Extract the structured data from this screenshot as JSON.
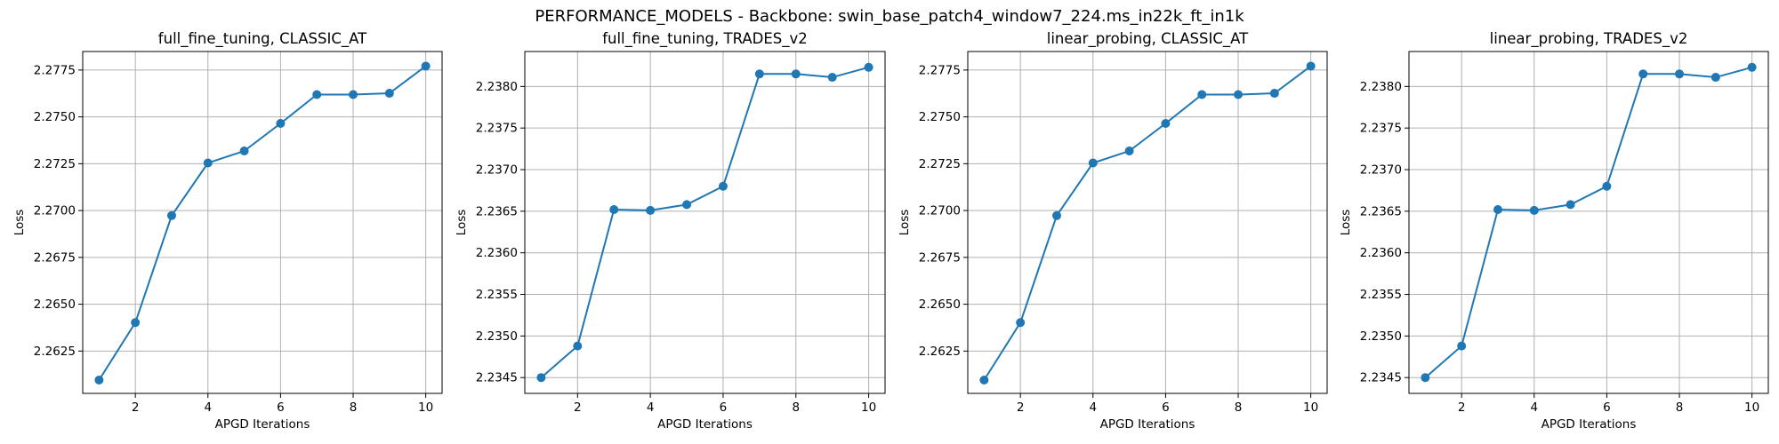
{
  "figure": {
    "suptitle": "PERFORMANCE_MODELS - Backbone: swin_base_patch4_window7_224.ms_in22k_ft_in1k",
    "line_color": "#1f77b4",
    "grid_color": "#b0b0b0"
  },
  "chart_data": [
    {
      "type": "line",
      "title": "full_fine_tuning, CLASSIC_AT",
      "xlabel": "APGD Iterations",
      "ylabel": "Loss",
      "x": [
        1,
        2,
        3,
        4,
        5,
        6,
        7,
        8,
        9,
        10
      ],
      "y": [
        2.26095,
        2.26402,
        2.26973,
        2.27254,
        2.27318,
        2.27465,
        2.27619,
        2.27619,
        2.27626,
        2.27771
      ],
      "xlim": [
        0.55,
        10.45
      ],
      "ylim": [
        2.26024,
        2.27849
      ],
      "xticks": [
        2,
        4,
        6,
        8,
        10
      ],
      "xtick_labels": [
        "2",
        "4",
        "6",
        "8",
        "10"
      ],
      "yticks": [
        2.2625,
        2.265,
        2.2675,
        2.27,
        2.2725,
        2.275,
        2.2775
      ],
      "ytick_labels": [
        "2.2625",
        "2.2650",
        "2.2675",
        "2.2700",
        "2.2725",
        "2.2750",
        "2.2775"
      ],
      "marker": "circle",
      "grid": true
    },
    {
      "type": "line",
      "title": "full_fine_tuning, TRADES_v2",
      "xlabel": "APGD Iterations",
      "ylabel": "Loss",
      "x": [
        1,
        2,
        3,
        4,
        5,
        6,
        7,
        8,
        9,
        10
      ],
      "y": [
        2.2345,
        2.23488,
        2.23652,
        2.23651,
        2.23658,
        2.2368,
        2.23815,
        2.23815,
        2.23811,
        2.23823
      ],
      "xlim": [
        0.55,
        10.45
      ],
      "ylim": [
        2.23431,
        2.23842
      ],
      "xticks": [
        2,
        4,
        6,
        8,
        10
      ],
      "xtick_labels": [
        "2",
        "4",
        "6",
        "8",
        "10"
      ],
      "yticks": [
        2.2345,
        2.235,
        2.2355,
        2.236,
        2.2365,
        2.237,
        2.2375,
        2.238
      ],
      "ytick_labels": [
        "2.2345",
        "2.2350",
        "2.2355",
        "2.2360",
        "2.2365",
        "2.2370",
        "2.2375",
        "2.2380"
      ],
      "marker": "circle",
      "grid": true
    },
    {
      "type": "line",
      "title": "linear_probing, CLASSIC_AT",
      "xlabel": "APGD Iterations",
      "ylabel": "Loss",
      "x": [
        1,
        2,
        3,
        4,
        5,
        6,
        7,
        8,
        9,
        10
      ],
      "y": [
        2.26095,
        2.26402,
        2.26973,
        2.27254,
        2.27318,
        2.27465,
        2.27619,
        2.27619,
        2.27626,
        2.27771
      ],
      "xlim": [
        0.55,
        10.45
      ],
      "ylim": [
        2.26024,
        2.27849
      ],
      "xticks": [
        2,
        4,
        6,
        8,
        10
      ],
      "xtick_labels": [
        "2",
        "4",
        "6",
        "8",
        "10"
      ],
      "yticks": [
        2.2625,
        2.265,
        2.2675,
        2.27,
        2.2725,
        2.275,
        2.2775
      ],
      "ytick_labels": [
        "2.2625",
        "2.2650",
        "2.2675",
        "2.2700",
        "2.2725",
        "2.2750",
        "2.2775"
      ],
      "marker": "circle",
      "grid": true
    },
    {
      "type": "line",
      "title": "linear_probing, TRADES_v2",
      "xlabel": "APGD Iterations",
      "ylabel": "Loss",
      "x": [
        1,
        2,
        3,
        4,
        5,
        6,
        7,
        8,
        9,
        10
      ],
      "y": [
        2.2345,
        2.23488,
        2.23652,
        2.23651,
        2.23658,
        2.2368,
        2.23815,
        2.23815,
        2.23811,
        2.23823
      ],
      "xlim": [
        0.55,
        10.45
      ],
      "ylim": [
        2.23431,
        2.23842
      ],
      "xticks": [
        2,
        4,
        6,
        8,
        10
      ],
      "xtick_labels": [
        "2",
        "4",
        "6",
        "8",
        "10"
      ],
      "yticks": [
        2.2345,
        2.235,
        2.2355,
        2.236,
        2.2365,
        2.237,
        2.2375,
        2.238
      ],
      "ytick_labels": [
        "2.2345",
        "2.2350",
        "2.2355",
        "2.2360",
        "2.2365",
        "2.2370",
        "2.2375",
        "2.2380"
      ],
      "marker": "circle",
      "grid": true
    }
  ]
}
